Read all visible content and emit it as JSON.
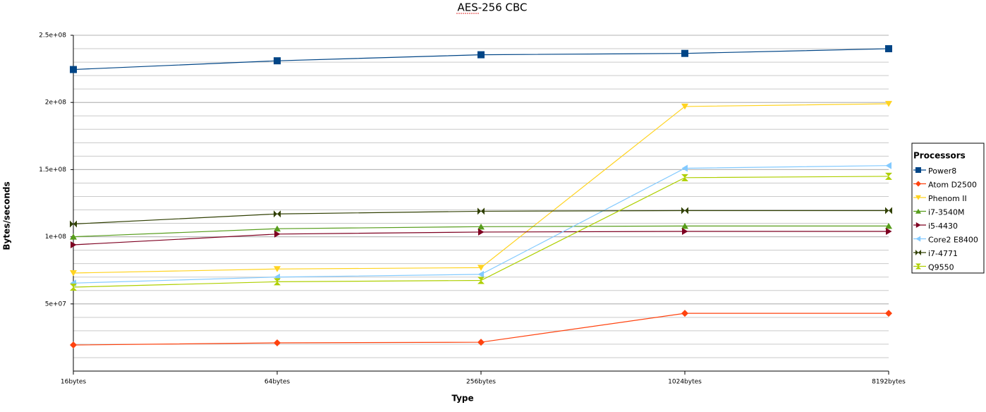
{
  "chart_data": {
    "type": "line",
    "title": "AES-256 CBC",
    "x_label": "Type",
    "y_label": "Bytes/seconds",
    "legend_title": "Processors",
    "legend": "right",
    "grid": true,
    "categories": [
      "16bytes",
      "64bytes",
      "256bytes",
      "1024bytes",
      "8192bytes"
    ],
    "ylim": [
      0,
      250000000
    ],
    "yticks": [
      {
        "value": 50000000,
        "label": "5e+07"
      },
      {
        "value": 100000000,
        "label": "1e+08"
      },
      {
        "value": 150000000,
        "label": "1.5e+08"
      },
      {
        "value": 200000000,
        "label": "2e+08"
      },
      {
        "value": 250000000,
        "label": "2.5e+08"
      }
    ],
    "series": [
      {
        "name": "Power8",
        "color": "#004586",
        "marker": "square",
        "values": [
          224500000,
          231000000,
          235500000,
          236500000,
          240000000
        ]
      },
      {
        "name": "Atom D2500",
        "color": "#ff420e",
        "marker": "diamond",
        "values": [
          19400000,
          21000000,
          21500000,
          43000000,
          43000000
        ]
      },
      {
        "name": "Phenom II",
        "color": "#ffd320",
        "marker": "triangle-down",
        "values": [
          73000000,
          76000000,
          77000000,
          197000000,
          199000000
        ]
      },
      {
        "name": "i7-3540M",
        "color": "#579d1c",
        "marker": "triangle-up",
        "values": [
          100000000,
          106000000,
          107500000,
          108000000,
          108000000
        ]
      },
      {
        "name": "i5-4430",
        "color": "#7e0021",
        "marker": "triangle-right",
        "values": [
          94000000,
          102000000,
          103500000,
          104000000,
          104000000
        ]
      },
      {
        "name": "Core2 E8400",
        "color": "#83caff",
        "marker": "triangle-left",
        "values": [
          65500000,
          70000000,
          72000000,
          151000000,
          153000000
        ]
      },
      {
        "name": "i7-4771",
        "color": "#314004",
        "marker": "bowtie",
        "values": [
          109500000,
          117000000,
          119000000,
          119500000,
          119500000
        ]
      },
      {
        "name": "Q9550",
        "color": "#aecf00",
        "marker": "hourglass",
        "values": [
          62500000,
          66500000,
          67500000,
          144000000,
          145000000
        ]
      }
    ]
  }
}
